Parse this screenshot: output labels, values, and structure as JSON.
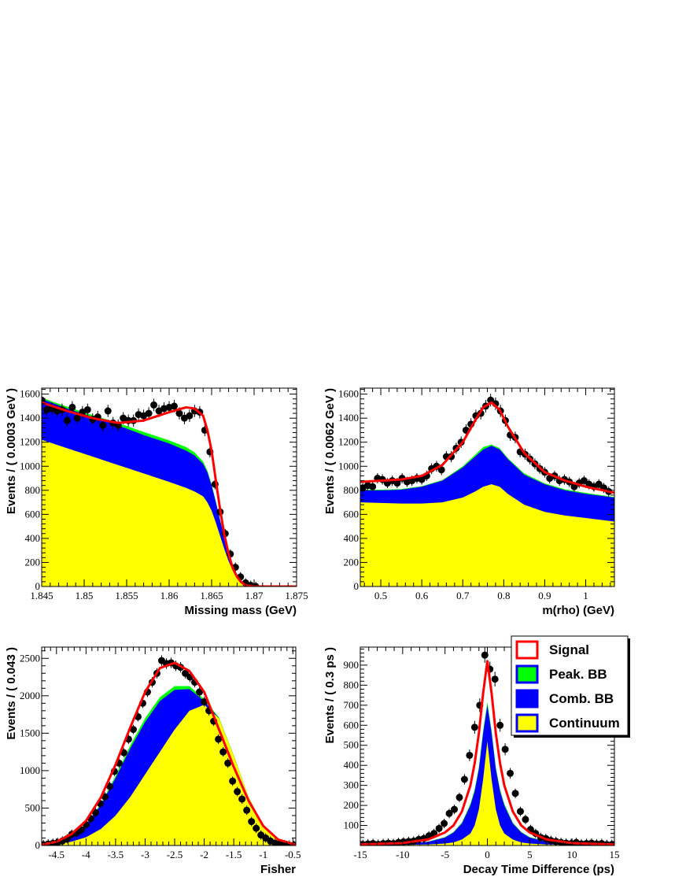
{
  "colors": {
    "signal": "#ff0000",
    "peak_bb": "#00ff00",
    "comb_bb": "#0000ff",
    "continuum": "#ffff00",
    "points": "#000000"
  },
  "legend": {
    "entries": [
      {
        "label": "Signal",
        "fill": "#ffffff",
        "stroke": "#ff0000"
      },
      {
        "label": "Peak. BB",
        "fill": "#00ff00",
        "stroke": "#0000ff"
      },
      {
        "label": "Comb. BB",
        "fill": "#0000ff",
        "stroke": "#0000ff"
      },
      {
        "label": "Continuum",
        "fill": "#ffff00",
        "stroke": "#0000ff"
      }
    ]
  },
  "chart_data": [
    {
      "id": "missing-mass",
      "type": "area",
      "xlabel": "Missing mass (GeV)",
      "ylabel": "Events / ( 0.0003 GeV )",
      "xlim": [
        1.845,
        1.875
      ],
      "ylim": [
        0,
        1650
      ],
      "xticks": [
        1.845,
        1.85,
        1.855,
        1.86,
        1.865,
        1.87,
        1.875
      ],
      "xtick_labels": [
        "1.845",
        "1.85",
        "1.855",
        "1.86",
        "1.865",
        "1.87",
        "1.875"
      ],
      "yticks": [
        0,
        200,
        400,
        600,
        800,
        1000,
        1200,
        1400,
        1600
      ],
      "ytick_labels": [
        "0",
        "200",
        "400",
        "600",
        "800",
        "1000",
        "1200",
        "1400",
        "1600"
      ],
      "x": [
        1.845,
        1.848,
        1.851,
        1.854,
        1.857,
        1.86,
        1.862,
        1.863,
        1.864,
        1.8645,
        1.865,
        1.8655,
        1.866,
        1.8665,
        1.867,
        1.8675,
        1.868,
        1.8685,
        1.869,
        1.8695,
        1.87,
        1.872,
        1.875
      ],
      "stack": [
        {
          "name": "Continuum",
          "values": [
            1220,
            1150,
            1080,
            1010,
            940,
            870,
            820,
            790,
            750,
            700,
            630,
            530,
            420,
            310,
            210,
            130,
            70,
            30,
            10,
            2,
            0,
            0,
            0
          ]
        },
        {
          "name": "Comb. BB",
          "values": [
            1560,
            1480,
            1410,
            1340,
            1260,
            1190,
            1130,
            1090,
            1020,
            950,
            840,
            700,
            550,
            410,
            280,
            170,
            90,
            40,
            12,
            3,
            0,
            0,
            0
          ]
        },
        {
          "name": "Peak. BB",
          "values": [
            1570,
            1495,
            1425,
            1360,
            1285,
            1215,
            1160,
            1115,
            1040,
            965,
            850,
            708,
            555,
            413,
            282,
            171,
            91,
            40,
            12,
            3,
            0,
            0,
            0
          ]
        }
      ],
      "signal": {
        "x": [
          1.845,
          1.848,
          1.851,
          1.854,
          1.857,
          1.86,
          1.862,
          1.863,
          1.864,
          1.8645,
          1.865,
          1.8655,
          1.866,
          1.8665,
          1.867,
          1.8675,
          1.868,
          1.8685,
          1.869,
          1.8695,
          1.87,
          1.872,
          1.875
        ],
        "y": [
          1530,
          1460,
          1400,
          1360,
          1380,
          1450,
          1490,
          1480,
          1420,
          1300,
          1130,
          880,
          640,
          430,
          270,
          150,
          80,
          35,
          12,
          3,
          0,
          0,
          0
        ]
      },
      "points": {
        "x": [
          1.845,
          1.8456,
          1.8462,
          1.8468,
          1.8474,
          1.848,
          1.8486,
          1.8492,
          1.8498,
          1.8504,
          1.851,
          1.8516,
          1.8522,
          1.8528,
          1.8534,
          1.854,
          1.8546,
          1.8552,
          1.8558,
          1.8564,
          1.857,
          1.8576,
          1.8582,
          1.8588,
          1.8594,
          1.86,
          1.8606,
          1.8612,
          1.8618,
          1.8624,
          1.863,
          1.8636,
          1.8642,
          1.8648,
          1.8654,
          1.866,
          1.8666,
          1.8672,
          1.8678,
          1.8684,
          1.869,
          1.8696,
          1.8702
        ],
        "y": [
          1550,
          1470,
          1480,
          1460,
          1470,
          1380,
          1490,
          1400,
          1450,
          1470,
          1390,
          1410,
          1340,
          1460,
          1360,
          1340,
          1400,
          1380,
          1380,
          1430,
          1420,
          1440,
          1510,
          1460,
          1480,
          1490,
          1500,
          1440,
          1400,
          1420,
          1460,
          1450,
          1300,
          1120,
          850,
          620,
          440,
          270,
          160,
          80,
          30,
          10,
          0
        ]
      }
    },
    {
      "id": "m-rho",
      "type": "area",
      "xlabel": "m(rho) (GeV)",
      "ylabel": "Events / ( 0.0062 GeV )",
      "xlim": [
        0.45,
        1.07
      ],
      "ylim": [
        0,
        1650
      ],
      "xticks": [
        0.5,
        0.6,
        0.7,
        0.8,
        0.9,
        1.0
      ],
      "xtick_labels": [
        "0.5",
        "0.6",
        "0.7",
        "0.8",
        "0.9",
        "1"
      ],
      "yticks": [
        0,
        200,
        400,
        600,
        800,
        1000,
        1200,
        1400,
        1600
      ],
      "ytick_labels": [
        "0",
        "200",
        "400",
        "600",
        "800",
        "1000",
        "1200",
        "1400",
        "1600"
      ],
      "x": [
        0.45,
        0.5,
        0.55,
        0.6,
        0.65,
        0.7,
        0.73,
        0.75,
        0.77,
        0.79,
        0.81,
        0.85,
        0.9,
        0.95,
        1.0,
        1.07
      ],
      "stack": [
        {
          "name": "Continuum",
          "values": [
            700,
            695,
            690,
            690,
            700,
            740,
            790,
            830,
            850,
            830,
            770,
            680,
            620,
            590,
            570,
            540
          ]
        },
        {
          "name": "Comb. BB",
          "values": [
            800,
            800,
            805,
            830,
            880,
            990,
            1080,
            1140,
            1170,
            1140,
            1060,
            930,
            850,
            800,
            770,
            740
          ]
        },
        {
          "name": "Peak. BB",
          "values": [
            805,
            805,
            810,
            835,
            885,
            1000,
            1095,
            1160,
            1180,
            1150,
            1068,
            940,
            858,
            808,
            778,
            745
          ]
        }
      ],
      "signal": {
        "x": [
          0.45,
          0.5,
          0.55,
          0.6,
          0.65,
          0.7,
          0.73,
          0.75,
          0.77,
          0.79,
          0.81,
          0.85,
          0.9,
          0.95,
          1.0,
          1.07
        ],
        "y": [
          870,
          880,
          890,
          920,
          1010,
          1200,
          1380,
          1490,
          1530,
          1470,
          1330,
          1110,
          950,
          880,
          830,
          780
        ]
      },
      "points": {
        "x": [
          0.456,
          0.468,
          0.48,
          0.492,
          0.504,
          0.516,
          0.528,
          0.54,
          0.552,
          0.564,
          0.576,
          0.588,
          0.6,
          0.612,
          0.624,
          0.636,
          0.648,
          0.66,
          0.672,
          0.684,
          0.696,
          0.708,
          0.72,
          0.732,
          0.744,
          0.756,
          0.768,
          0.78,
          0.792,
          0.804,
          0.816,
          0.828,
          0.84,
          0.852,
          0.864,
          0.876,
          0.888,
          0.9,
          0.912,
          0.924,
          0.936,
          0.948,
          0.96,
          0.972,
          0.984,
          0.996,
          1.008,
          1.02,
          1.032,
          1.044,
          1.056
        ],
        "y": [
          820,
          840,
          830,
          900,
          890,
          860,
          880,
          860,
          900,
          870,
          880,
          900,
          890,
          920,
          980,
          1000,
          970,
          1080,
          1080,
          1150,
          1200,
          1300,
          1350,
          1420,
          1440,
          1500,
          1550,
          1520,
          1460,
          1380,
          1260,
          1240,
          1120,
          1100,
          1060,
          1020,
          980,
          950,
          900,
          920,
          880,
          890,
          870,
          830,
          860,
          880,
          850,
          830,
          850,
          820,
          790
        ]
      }
    },
    {
      "id": "fisher",
      "type": "area",
      "xlabel": "Fisher",
      "ylabel": "Events / ( 0.043 )",
      "xlim": [
        -4.75,
        -0.45
      ],
      "ylim": [
        0,
        2650
      ],
      "xticks": [
        -4.5,
        -4,
        -3.5,
        -3,
        -2.5,
        -2,
        -1.5,
        -1,
        -0.5
      ],
      "xtick_labels": [
        "-4.5",
        "-4",
        "-3.5",
        "-3",
        "-2.5",
        "-2",
        "-1.5",
        "-1",
        "-0.5"
      ],
      "yticks": [
        0,
        500,
        1000,
        1500,
        2000,
        2500
      ],
      "ytick_labels": [
        "0",
        "500",
        "1000",
        "1500",
        "2000",
        "2500"
      ],
      "x": [
        -4.75,
        -4.5,
        -4.25,
        -4.0,
        -3.75,
        -3.5,
        -3.25,
        -3.0,
        -2.75,
        -2.5,
        -2.25,
        -2.0,
        -1.75,
        -1.5,
        -1.25,
        -1.0,
        -0.75,
        -0.45
      ],
      "stack": [
        {
          "name": "Continuum",
          "values": [
            5,
            20,
            50,
            110,
            220,
            400,
            650,
            950,
            1250,
            1550,
            1800,
            1880,
            1700,
            1200,
            650,
            260,
            70,
            10
          ]
        },
        {
          "name": "Comb. BB",
          "values": [
            10,
            40,
            110,
            270,
            540,
            900,
            1300,
            1650,
            1930,
            2080,
            2090,
            1930,
            1700,
            1200,
            650,
            260,
            70,
            10
          ]
        },
        {
          "name": "Peak. BB",
          "values": [
            10,
            42,
            115,
            280,
            555,
            930,
            1340,
            1700,
            1980,
            2130,
            2130,
            1955,
            1710,
            1205,
            652,
            261,
            70,
            10
          ]
        }
      ],
      "signal": {
        "x": [
          -4.75,
          -4.5,
          -4.25,
          -4.0,
          -3.75,
          -3.5,
          -3.25,
          -3.0,
          -2.75,
          -2.5,
          -2.25,
          -2.0,
          -1.75,
          -1.5,
          -1.25,
          -1.0,
          -0.75,
          -0.45
        ],
        "y": [
          10,
          50,
          150,
          330,
          640,
          1080,
          1580,
          2050,
          2370,
          2440,
          2330,
          2050,
          1550,
          1050,
          600,
          260,
          80,
          10
        ]
      },
      "points": {
        "x": [
          -4.72,
          -4.64,
          -4.56,
          -4.48,
          -4.4,
          -4.32,
          -4.24,
          -4.16,
          -4.08,
          -4.0,
          -3.92,
          -3.84,
          -3.76,
          -3.68,
          -3.6,
          -3.52,
          -3.44,
          -3.36,
          -3.28,
          -3.2,
          -3.12,
          -3.04,
          -2.96,
          -2.88,
          -2.8,
          -2.72,
          -2.64,
          -2.56,
          -2.48,
          -2.4,
          -2.32,
          -2.24,
          -2.16,
          -2.08,
          -2.0,
          -1.92,
          -1.84,
          -1.76,
          -1.68,
          -1.6,
          -1.52,
          -1.44,
          -1.36,
          -1.28,
          -1.2,
          -1.12,
          -1.04,
          -0.96,
          -0.88,
          -0.8,
          -0.72,
          -0.64,
          -0.56,
          -0.48
        ],
        "y": [
          10,
          20,
          30,
          40,
          60,
          90,
          150,
          170,
          210,
          280,
          360,
          440,
          560,
          650,
          790,
          990,
          1100,
          1240,
          1420,
          1550,
          1720,
          1900,
          2050,
          2180,
          2300,
          2470,
          2430,
          2440,
          2400,
          2380,
          2300,
          2250,
          2180,
          2050,
          1920,
          1800,
          1660,
          1420,
          1250,
          1100,
          860,
          720,
          620,
          470,
          320,
          230,
          140,
          100,
          60,
          30,
          20,
          10,
          5,
          2
        ]
      }
    },
    {
      "id": "decay-time",
      "type": "area",
      "xlabel": "Decay Time Difference (ps)",
      "ylabel": "Events / ( 0.3 ps )",
      "xlim": [
        -15,
        15
      ],
      "ylim": [
        0,
        990
      ],
      "xticks": [
        -15,
        -10,
        -5,
        0,
        5,
        10,
        15
      ],
      "xtick_labels": [
        "-15",
        "-10",
        "-5",
        "0",
        "5",
        "10",
        "15"
      ],
      "yticks": [
        100,
        200,
        300,
        400,
        500,
        600,
        700,
        800,
        900
      ],
      "ytick_labels": [
        "100",
        "200",
        "300",
        "400",
        "500",
        "600",
        "700",
        "800",
        "900"
      ],
      "x": [
        -15,
        -10,
        -7,
        -5,
        -4,
        -3,
        -2,
        -1.5,
        -1,
        -0.5,
        0,
        0.5,
        1,
        1.5,
        2,
        3,
        4,
        5,
        7,
        10,
        15
      ],
      "stack": [
        {
          "name": "Continuum",
          "values": [
            2,
            3,
            5,
            10,
            15,
            30,
            60,
            100,
            180,
            330,
            520,
            330,
            180,
            100,
            60,
            30,
            15,
            10,
            5,
            3,
            2
          ]
        },
        {
          "name": "Comb. BB",
          "values": [
            3,
            8,
            18,
            40,
            65,
            110,
            200,
            270,
            380,
            560,
            700,
            560,
            380,
            270,
            200,
            110,
            65,
            40,
            18,
            8,
            3
          ]
        },
        {
          "name": "Peak. BB",
          "values": [
            3,
            8,
            19,
            42,
            68,
            115,
            208,
            280,
            392,
            575,
            715,
            575,
            392,
            280,
            208,
            115,
            68,
            42,
            19,
            8,
            3
          ]
        }
      ],
      "signal": {
        "x": [
          -15,
          -10,
          -7,
          -5,
          -4,
          -3,
          -2,
          -1.5,
          -1,
          -0.5,
          0,
          0.5,
          1,
          1.5,
          2,
          3,
          4,
          5,
          7,
          10,
          15
        ],
        "y": [
          5,
          12,
          30,
          65,
          100,
          170,
          300,
          410,
          560,
          760,
          920,
          760,
          560,
          410,
          300,
          170,
          100,
          65,
          30,
          12,
          5
        ]
      },
      "points": {
        "x": [
          -14.7,
          -14.1,
          -13.5,
          -12.9,
          -12.3,
          -11.7,
          -11.1,
          -10.5,
          -9.9,
          -9.3,
          -8.7,
          -8.1,
          -7.5,
          -6.9,
          -6.3,
          -5.7,
          -5.1,
          -4.5,
          -3.9,
          -3.3,
          -2.7,
          -2.1,
          -1.5,
          -0.9,
          -0.3,
          0.3,
          0.9,
          1.5,
          2.1,
          2.7,
          3.3,
          3.9,
          4.5,
          5.1,
          5.7,
          6.3,
          6.9,
          7.5,
          8.1,
          8.7,
          9.3,
          9.9,
          10.5,
          11.1,
          11.7,
          12.3,
          12.9,
          13.5,
          14.1,
          14.7
        ],
        "y": [
          5,
          8,
          10,
          6,
          10,
          12,
          10,
          15,
          18,
          20,
          22,
          30,
          35,
          48,
          60,
          85,
          110,
          160,
          180,
          240,
          330,
          450,
          590,
          700,
          950,
          880,
          830,
          600,
          480,
          360,
          260,
          170,
          130,
          80,
          60,
          40,
          35,
          25,
          20,
          15,
          12,
          10,
          15,
          8,
          10,
          12,
          8,
          10,
          5,
          5
        ]
      }
    }
  ]
}
